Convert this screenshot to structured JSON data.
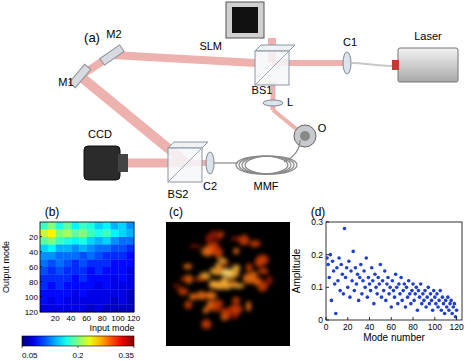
{
  "diagram": {
    "title": "(a)",
    "components": [
      {
        "label": "Laser"
      },
      {
        "label": "C1"
      },
      {
        "label": "BS1"
      },
      {
        "label": "SLM"
      },
      {
        "label": "M2"
      },
      {
        "label": "M1"
      },
      {
        "label": "L"
      },
      {
        "label": "O"
      },
      {
        "label": "MMF"
      },
      {
        "label": "C2"
      },
      {
        "label": "BS2"
      },
      {
        "label": "CCD"
      }
    ]
  },
  "chart_data": [
    {
      "type": "heatmap",
      "title": "(b)",
      "x_label": "Input mode",
      "y_label": "Output mode",
      "xlim": [
        0.5,
        120.5
      ],
      "ylim": [
        0.5,
        120.5
      ],
      "xticks": [
        20,
        40,
        60,
        80,
        100,
        120
      ],
      "yticks": [
        20,
        40,
        60,
        80,
        100,
        120
      ],
      "x_edges": [
        0.5,
        10.5,
        20.5,
        30.5,
        40.5,
        50.5,
        60.5,
        70.5,
        80.5,
        90.5,
        100.5,
        110.5,
        120.5
      ],
      "y_edges": [
        0.5,
        10.5,
        20.5,
        30.5,
        40.5,
        50.5,
        60.5,
        70.5,
        80.5,
        90.5,
        100.5,
        110.5,
        120.5
      ],
      "cells": [
        [
          0.18,
          0.2,
          0.17,
          0.19,
          0.16,
          0.18,
          0.17,
          0.15,
          0.16,
          0.14,
          0.15,
          0.13
        ],
        [
          0.22,
          0.24,
          0.2,
          0.21,
          0.19,
          0.2,
          0.18,
          0.17,
          0.18,
          0.16,
          0.15,
          0.14
        ],
        [
          0.19,
          0.2,
          0.18,
          0.17,
          0.16,
          0.17,
          0.15,
          0.14,
          0.15,
          0.13,
          0.12,
          0.12
        ],
        [
          0.15,
          0.16,
          0.14,
          0.14,
          0.13,
          0.14,
          0.13,
          0.12,
          0.12,
          0.11,
          0.11,
          0.1
        ],
        [
          0.13,
          0.13,
          0.12,
          0.12,
          0.12,
          0.11,
          0.12,
          0.11,
          0.1,
          0.1,
          0.1,
          0.09
        ],
        [
          0.12,
          0.11,
          0.12,
          0.11,
          0.1,
          0.11,
          0.1,
          0.1,
          0.1,
          0.09,
          0.09,
          0.09
        ],
        [
          0.11,
          0.1,
          0.11,
          0.1,
          0.1,
          0.1,
          0.09,
          0.1,
          0.09,
          0.09,
          0.09,
          0.08
        ],
        [
          0.1,
          0.1,
          0.1,
          0.1,
          0.09,
          0.1,
          0.09,
          0.09,
          0.09,
          0.08,
          0.09,
          0.08
        ],
        [
          0.1,
          0.09,
          0.1,
          0.09,
          0.09,
          0.09,
          0.09,
          0.08,
          0.09,
          0.08,
          0.08,
          0.08
        ],
        [
          0.09,
          0.09,
          0.09,
          0.09,
          0.08,
          0.09,
          0.08,
          0.08,
          0.08,
          0.08,
          0.08,
          0.07
        ],
        [
          0.09,
          0.08,
          0.09,
          0.08,
          0.08,
          0.08,
          0.08,
          0.08,
          0.08,
          0.07,
          0.08,
          0.07
        ],
        [
          0.08,
          0.08,
          0.08,
          0.08,
          0.08,
          0.08,
          0.07,
          0.08,
          0.07,
          0.07,
          0.07,
          0.07
        ]
      ],
      "color_range": [
        0.05,
        0.35
      ],
      "color_ticks": [
        0.05,
        0.2,
        0.35
      ]
    },
    {
      "type": "image",
      "title": "(c)"
    },
    {
      "type": "scatter",
      "title": "(d)",
      "x_label": "Mode number",
      "y_label": "Amplitude",
      "color": "#1f3fd0",
      "marker": "circle",
      "xlim": [
        0,
        125
      ],
      "ylim": [
        0,
        0.3
      ],
      "xticks": [
        0,
        20,
        40,
        60,
        80,
        100,
        120
      ],
      "yticks": [
        0,
        0.1,
        0.2,
        0.3
      ],
      "x": [
        1,
        2,
        3,
        4,
        5,
        6,
        7,
        8,
        9,
        10,
        11,
        12,
        13,
        14,
        15,
        16,
        17,
        18,
        19,
        20,
        21,
        22,
        23,
        24,
        25,
        26,
        27,
        28,
        29,
        30,
        31,
        32,
        33,
        34,
        35,
        36,
        37,
        38,
        39,
        40,
        41,
        42,
        43,
        44,
        45,
        46,
        47,
        48,
        49,
        50,
        51,
        52,
        53,
        54,
        55,
        56,
        57,
        58,
        59,
        60,
        61,
        62,
        63,
        64,
        65,
        66,
        67,
        68,
        69,
        70,
        71,
        72,
        73,
        74,
        75,
        76,
        77,
        78,
        79,
        80,
        81,
        82,
        83,
        84,
        85,
        86,
        87,
        88,
        89,
        90,
        91,
        92,
        93,
        94,
        95,
        96,
        97,
        98,
        99,
        100,
        101,
        102,
        103,
        104,
        105,
        106,
        107,
        108,
        109,
        110,
        111,
        112,
        113,
        114,
        115,
        116,
        117,
        118,
        119,
        120
      ],
      "values": [
        0.19,
        0.17,
        0.13,
        0.2,
        0.06,
        0.18,
        0.15,
        0.11,
        0.02,
        0.16,
        0.12,
        0.19,
        0.09,
        0.17,
        0.14,
        0.08,
        0.28,
        0.13,
        0.16,
        0.1,
        0.18,
        0.07,
        0.15,
        0.12,
        0.21,
        0.09,
        0.16,
        0.11,
        0.14,
        0.06,
        0.13,
        0.17,
        0.08,
        0.12,
        0.15,
        0.1,
        0.19,
        0.07,
        0.13,
        0.11,
        0.09,
        0.16,
        0.12,
        0.05,
        0.14,
        0.1,
        0.08,
        0.13,
        0.11,
        0.17,
        0.07,
        0.12,
        0.09,
        0.15,
        0.06,
        0.11,
        0.13,
        0.08,
        0.1,
        0.04,
        0.12,
        0.09,
        0.07,
        0.14,
        0.1,
        0.05,
        0.11,
        0.08,
        0.13,
        0.06,
        0.09,
        0.11,
        0.04,
        0.1,
        0.07,
        0.12,
        0.08,
        0.05,
        0.09,
        0.11,
        0.06,
        0.08,
        0.1,
        0.03,
        0.09,
        0.07,
        0.11,
        0.05,
        0.08,
        0.06,
        0.09,
        0.04,
        0.07,
        0.1,
        0.05,
        0.08,
        0.06,
        0.03,
        0.09,
        0.07,
        0.05,
        0.08,
        0.04,
        0.06,
        0.09,
        0.03,
        0.07,
        0.05,
        0.02,
        0.06,
        0.04,
        0.07,
        0.03,
        0.05,
        0.06,
        0.02,
        0.04,
        0.05,
        0.01,
        0.03
      ]
    }
  ]
}
